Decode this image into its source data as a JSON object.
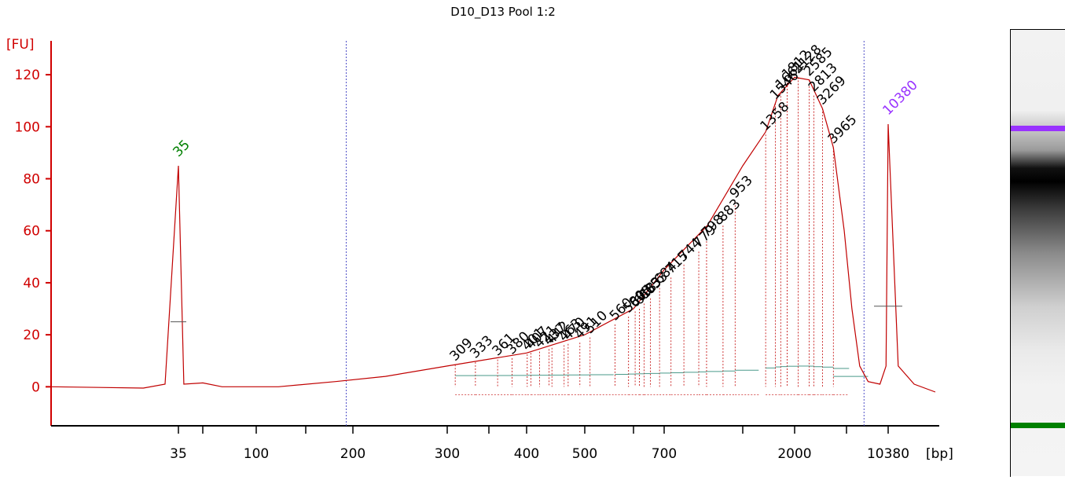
{
  "chart_data": {
    "type": "line",
    "title": "D10_D13 Pool 1:2",
    "ylabel": "[FU]",
    "xlabel": "[bp]",
    "ylim": [
      -15,
      130
    ],
    "yticks": [
      0,
      20,
      40,
      60,
      80,
      100,
      120
    ],
    "xtick_labels": [
      "35",
      "100",
      "200",
      "300",
      "400",
      "500",
      "700",
      "2000",
      "10380"
    ],
    "colors": {
      "trace": "#c00000",
      "axis": "#d00000",
      "lower_marker": "#008000",
      "upper_marker": "#9933ff",
      "peak_label": "#000000",
      "region_line": "#4a9a8a",
      "cutoff": "#5050c8"
    },
    "series": [
      {
        "values": [
          {
            "x": 20,
            "y": 0
          },
          {
            "x": 30,
            "y": -0.5
          },
          {
            "x": 33,
            "y": 1
          },
          {
            "x": 35,
            "y": 85
          },
          {
            "x": 37,
            "y": 1
          },
          {
            "x": 45,
            "y": 1.5
          },
          {
            "x": 60,
            "y": 0
          },
          {
            "x": 120,
            "y": 0
          },
          {
            "x": 180,
            "y": 2
          },
          {
            "x": 230,
            "y": 4
          },
          {
            "x": 300,
            "y": 8
          },
          {
            "x": 400,
            "y": 13
          },
          {
            "x": 500,
            "y": 20
          },
          {
            "x": 600,
            "y": 30
          },
          {
            "x": 700,
            "y": 45
          },
          {
            "x": 800,
            "y": 62
          },
          {
            "x": 1000,
            "y": 85
          },
          {
            "x": 1358,
            "y": 98
          },
          {
            "x": 1600,
            "y": 112
          },
          {
            "x": 2000,
            "y": 119
          },
          {
            "x": 2585,
            "y": 118
          },
          {
            "x": 3269,
            "y": 107
          },
          {
            "x": 3965,
            "y": 92
          },
          {
            "x": 4800,
            "y": 60
          },
          {
            "x": 5500,
            "y": 30
          },
          {
            "x": 6300,
            "y": 8
          },
          {
            "x": 7300,
            "y": 2
          },
          {
            "x": 9000,
            "y": 1
          },
          {
            "x": 10000,
            "y": 8
          },
          {
            "x": 10380,
            "y": 101
          },
          {
            "x": 10800,
            "y": 8
          },
          {
            "x": 11500,
            "y": 1
          },
          {
            "x": 12500,
            "y": -2
          }
        ]
      }
    ],
    "markers": {
      "lower": {
        "label": "35",
        "x": 35
      },
      "upper": {
        "label": "10380",
        "x": 10380
      }
    },
    "peaks": [
      {
        "label": "309",
        "x": 309,
        "y": 8.5
      },
      {
        "label": "333",
        "x": 333,
        "y": 9.5
      },
      {
        "label": "361",
        "x": 361,
        "y": 10.5
      },
      {
        "label": "380",
        "x": 380,
        "y": 11
      },
      {
        "label": "401",
        "x": 401,
        "y": 12.5
      },
      {
        "label": "407",
        "x": 407,
        "y": 13
      },
      {
        "label": "421",
        "x": 421,
        "y": 13.5
      },
      {
        "label": "437",
        "x": 437,
        "y": 14.5
      },
      {
        "label": "442",
        "x": 442,
        "y": 15
      },
      {
        "label": "463",
        "x": 463,
        "y": 16
      },
      {
        "label": "470",
        "x": 470,
        "y": 16.5
      },
      {
        "label": "491",
        "x": 491,
        "y": 17
      },
      {
        "label": "510",
        "x": 510,
        "y": 19
      },
      {
        "label": "560",
        "x": 560,
        "y": 24
      },
      {
        "label": "589",
        "x": 589,
        "y": 27
      },
      {
        "label": "605",
        "x": 605,
        "y": 29
      },
      {
        "label": "618",
        "x": 618,
        "y": 30
      },
      {
        "label": "633",
        "x": 633,
        "y": 32
      },
      {
        "label": "653",
        "x": 653,
        "y": 34
      },
      {
        "label": "684",
        "x": 684,
        "y": 38
      },
      {
        "label": "715",
        "x": 715,
        "y": 42
      },
      {
        "label": "744",
        "x": 744,
        "y": 47
      },
      {
        "label": "779",
        "x": 779,
        "y": 52
      },
      {
        "label": "798",
        "x": 798,
        "y": 56
      },
      {
        "label": "883",
        "x": 883,
        "y": 62
      },
      {
        "label": "953",
        "x": 953,
        "y": 71
      },
      {
        "label": "1358",
        "x": 1358,
        "y": 97
      },
      {
        "label": "1546",
        "x": 1546,
        "y": 109
      },
      {
        "label": "1661",
        "x": 1661,
        "y": 113
      },
      {
        "label": "1812",
        "x": 1812,
        "y": 117
      },
      {
        "label": "2128",
        "x": 2128,
        "y": 119
      },
      {
        "label": "2585",
        "x": 2585,
        "y": 118
      },
      {
        "label": "2813",
        "x": 2813,
        "y": 112
      },
      {
        "label": "3269",
        "x": 3269,
        "y": 107
      },
      {
        "label": "3965",
        "x": 3965,
        "y": 92
      }
    ],
    "region": {
      "from": 192,
      "to": 6800
    },
    "gel_bands": [
      {
        "position": 0.22,
        "intensity": 1.0,
        "color": "#9933ff"
      },
      {
        "position": 0.32,
        "intensity": 0.95,
        "color": "#000000"
      },
      {
        "position": 0.9,
        "intensity": 1.0,
        "color": "#008000"
      }
    ]
  }
}
